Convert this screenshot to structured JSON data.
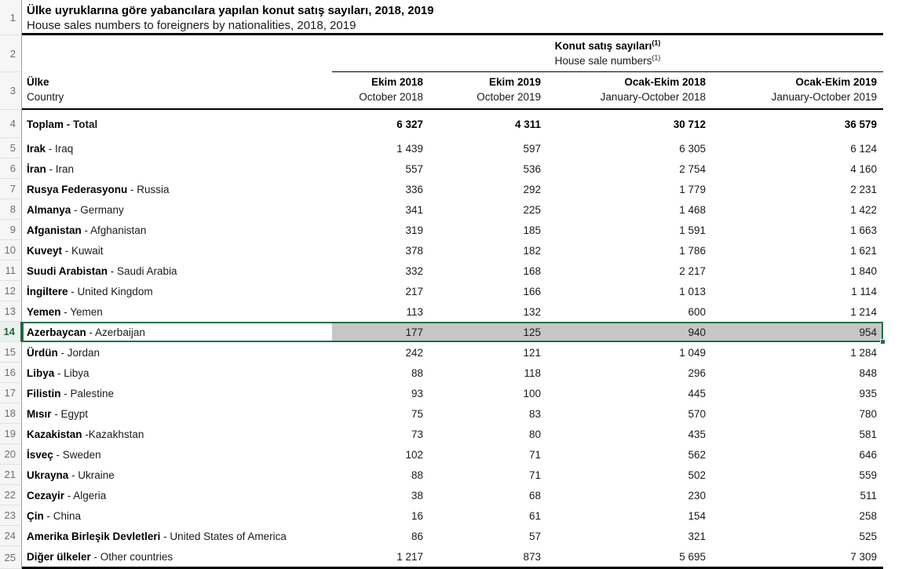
{
  "sheet": {
    "title_tr": "Ülke uyruklarına göre yabancılara yapılan konut satış sayıları, 2018, 2019",
    "title_en": "House sales numbers to foreigners by nationalities, 2018, 2019",
    "group_header": {
      "tr": "Konut satış sayıları",
      "en": "House sale numbers",
      "footnote_marker": "(1)"
    },
    "country_header": {
      "tr": "Ülke",
      "en": "Country"
    },
    "columns": [
      {
        "tr": "Ekim 2018",
        "en": "October 2018"
      },
      {
        "tr": "Ekim 2019",
        "en": "October 2019"
      },
      {
        "tr": "Ocak-Ekim 2018",
        "en": "January-October 2018"
      },
      {
        "tr": "Ocak-Ekim 2019",
        "en": "January-October 2019"
      }
    ],
    "header_row_numbers": [
      "1",
      "2",
      "3"
    ],
    "selected_row": 14,
    "colors": {
      "selection_green": "#1E7145",
      "selection_fill": "#C6C6C6",
      "section_border": "#000000",
      "gutter_text": "#6E6E6E"
    },
    "rows": [
      {
        "row": 4,
        "tr": "Toplam",
        "sep": " - ",
        "en": "Total",
        "is_total": true,
        "values": [
          "6 327",
          "4 311",
          "30 712",
          "36 579"
        ]
      },
      {
        "row": 5,
        "tr": "Irak",
        "sep": " - ",
        "en": "Iraq",
        "values": [
          "1 439",
          "597",
          "6 305",
          "6 124"
        ]
      },
      {
        "row": 6,
        "tr": "İran",
        "sep": " - ",
        "en": "Iran",
        "values": [
          "557",
          "536",
          "2 754",
          "4 160"
        ]
      },
      {
        "row": 7,
        "tr": "Rusya Federasyonu",
        "sep": " - ",
        "en": "Russia",
        "values": [
          "336",
          "292",
          "1 779",
          "2 231"
        ]
      },
      {
        "row": 8,
        "tr": "Almanya",
        "sep": " - ",
        "en": "Germany",
        "values": [
          "341",
          "225",
          "1 468",
          "1 422"
        ]
      },
      {
        "row": 9,
        "tr": "Afganistan",
        "sep": " - ",
        "en": "Afghanistan",
        "values": [
          "319",
          "185",
          "1 591",
          "1 663"
        ]
      },
      {
        "row": 10,
        "tr": "Kuveyt",
        "sep": " - ",
        "en": "Kuwait",
        "values": [
          "378",
          "182",
          "1 786",
          "1 621"
        ]
      },
      {
        "row": 11,
        "tr": "Suudi Arabistan",
        "sep": " - ",
        "en": "Saudi Arabia",
        "values": [
          "332",
          "168",
          "2 217",
          "1 840"
        ]
      },
      {
        "row": 12,
        "tr": "İngiltere",
        "sep": " - ",
        "en": "United Kingdom",
        "values": [
          "217",
          "166",
          "1 013",
          "1 114"
        ]
      },
      {
        "row": 13,
        "tr": "Yemen",
        "sep": " - ",
        "en": "Yemen",
        "values": [
          "113",
          "132",
          "600",
          "1 214"
        ]
      },
      {
        "row": 14,
        "tr": "Azerbaycan",
        "sep": " - ",
        "en": "Azerbaijan",
        "values": [
          "177",
          "125",
          "940",
          "954"
        ]
      },
      {
        "row": 15,
        "tr": "Ürdün",
        "sep": " - ",
        "en": "Jordan",
        "values": [
          "242",
          "121",
          "1 049",
          "1 284"
        ]
      },
      {
        "row": 16,
        "tr": "Libya",
        "sep": " - ",
        "en": "Libya",
        "values": [
          "88",
          "118",
          "296",
          "848"
        ]
      },
      {
        "row": 17,
        "tr": "Filistin",
        "sep": " - ",
        "en": "Palestine",
        "values": [
          "93",
          "100",
          "445",
          "935"
        ]
      },
      {
        "row": 18,
        "tr": "Mısır",
        "sep": " - ",
        "en": "Egypt",
        "values": [
          "75",
          "83",
          "570",
          "780"
        ]
      },
      {
        "row": 19,
        "tr": "Kazakistan",
        "sep": " -",
        "en": "Kazakhstan",
        "values": [
          "73",
          "80",
          "435",
          "581"
        ]
      },
      {
        "row": 20,
        "tr": "İsveç",
        "sep": " - ",
        "en": "Sweden",
        "values": [
          "102",
          "71",
          "562",
          "646"
        ]
      },
      {
        "row": 21,
        "tr": "Ukrayna",
        "sep": " - ",
        "en": "Ukraine",
        "values": [
          "88",
          "71",
          "502",
          "559"
        ]
      },
      {
        "row": 22,
        "tr": "Cezayir",
        "sep": " - ",
        "en": "Algeria",
        "values": [
          "38",
          "68",
          "230",
          "511"
        ]
      },
      {
        "row": 23,
        "tr": "Çin",
        "sep": " - ",
        "en": "China",
        "values": [
          "16",
          "61",
          "154",
          "258"
        ]
      },
      {
        "row": 24,
        "tr": "Amerika Birleşik Devletleri",
        "sep": " - ",
        "en": "United States of America",
        "values": [
          "86",
          "57",
          "321",
          "525"
        ]
      },
      {
        "row": 25,
        "tr": "Diğer ülkeler",
        "sep": " - ",
        "en": "Other countries",
        "values": [
          "1 217",
          "873",
          "5 695",
          "7 309"
        ]
      }
    ]
  }
}
